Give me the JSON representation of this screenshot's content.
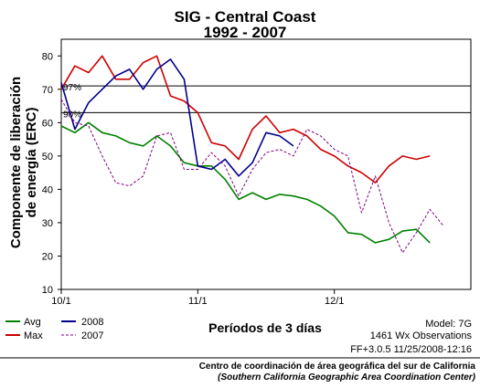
{
  "chart_data": {
    "type": "line",
    "title": "SIG - Central Coast",
    "subtitle": "1992 - 2007",
    "ylabel": "Componente de liberación de energía (ERC)",
    "ylabel_lines": [
      "Componente de liberación",
      "de energía (ERC)"
    ],
    "xlabel": "Períodos de 3 días",
    "ylim": [
      10,
      85
    ],
    "yticks": [
      10,
      20,
      30,
      40,
      50,
      60,
      70,
      80
    ],
    "period_count": 30,
    "xticks": [
      {
        "period": 0,
        "label": "10/1"
      },
      {
        "period": 10,
        "label": "11/1"
      },
      {
        "period": 20,
        "label": "12/1"
      }
    ],
    "grid": false,
    "reference_lines": [
      {
        "label": "97%",
        "value": 71
      },
      {
        "label": "90%",
        "value": 63
      }
    ],
    "series": [
      {
        "name": "Avg",
        "color": "#008000",
        "dash": "",
        "values": [
          59,
          57,
          60,
          57,
          56,
          54,
          53,
          56,
          53,
          48,
          47,
          47,
          43,
          37,
          39,
          37,
          38.5,
          38,
          37,
          35,
          32,
          27,
          26.5,
          24,
          25,
          27.5,
          28,
          24
        ]
      },
      {
        "name": "Max",
        "color": "#cc0000",
        "dash": "",
        "values": [
          70,
          77,
          75,
          80,
          73,
          73,
          78,
          80,
          68,
          66.5,
          63,
          54,
          53,
          49,
          58,
          62,
          57,
          58,
          56,
          52,
          50,
          47,
          45,
          42,
          47,
          50,
          49,
          50
        ]
      },
      {
        "name": "2008",
        "color": "#00008b",
        "dash": "",
        "values": [
          72,
          58,
          66,
          70,
          74,
          76,
          70,
          76,
          79,
          73,
          47,
          46,
          49,
          44,
          48,
          57,
          56,
          53
        ]
      },
      {
        "name": "2007",
        "color": "#800080",
        "dash": "3,2",
        "values": [
          67,
          60,
          59,
          50,
          42,
          41,
          44,
          56,
          57,
          46,
          46,
          51,
          47,
          38,
          46,
          51,
          52,
          50,
          58,
          56,
          52,
          50,
          33,
          44,
          30,
          21,
          27,
          34,
          29
        ]
      }
    ]
  },
  "info": {
    "model": "Model: 7G",
    "observations": "1461 Wx Observations",
    "version": "FF+3.0.5  11/25/2008-12:16"
  },
  "credit": {
    "line1": "Centro de coordinación de área geográfica del sur de California",
    "line2": "(Southern California Geographic Area Coordination Center)"
  }
}
